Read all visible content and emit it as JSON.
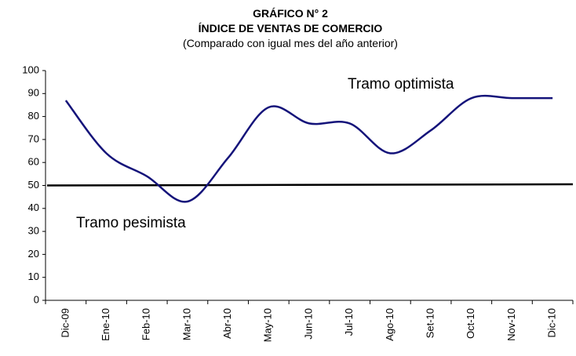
{
  "chart_data": {
    "type": "line",
    "title": "GRÁFICO N° 2",
    "subtitle": "ÍNDICE DE VENTAS DE COMERCIO",
    "note": "(Comparado con igual mes del año anterior)",
    "categories": [
      "Dic-09",
      "Ene-10",
      "Feb-10",
      "Mar-10",
      "Abr-10",
      "May-10",
      "Jun-10",
      "Jul-10",
      "Ago-10",
      "Set-10",
      "Oct-10",
      "Nov-10",
      "Dic-10"
    ],
    "series": [
      {
        "color": "#14137a",
        "values": [
          87,
          64,
          54,
          43,
          62,
          84,
          77,
          77,
          64,
          74,
          88,
          88,
          88
        ]
      }
    ],
    "reference_line": {
      "value": 50,
      "color": "#000000"
    },
    "annotations": [
      "Tramo optimista",
      "Tramo pesimista"
    ],
    "ylim": [
      0,
      100
    ],
    "yticks": [
      0,
      10,
      20,
      30,
      40,
      50,
      60,
      70,
      80,
      90,
      100
    ],
    "grid": false,
    "smooth": true
  }
}
